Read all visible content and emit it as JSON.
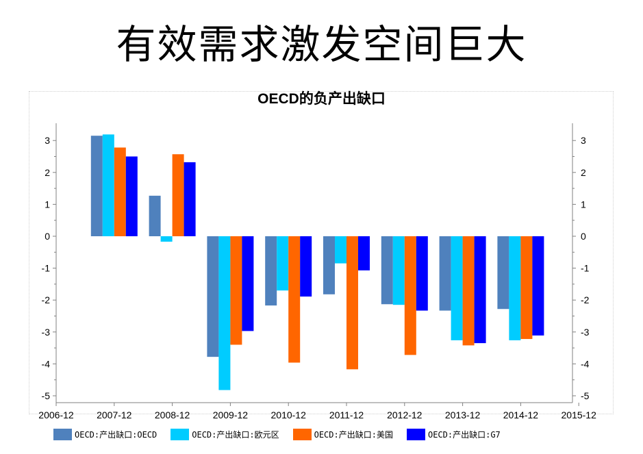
{
  "page": {
    "title": "有效需求激发空间巨大"
  },
  "chart_data": {
    "type": "bar",
    "title": "OECD的负产出缺口",
    "xlabel": "",
    "ylabel": "",
    "x_ticks": [
      "2006-12",
      "2007-12",
      "2008-12",
      "2009-12",
      "2010-12",
      "2011-12",
      "2012-12",
      "2013-12",
      "2014-12",
      "2015-12"
    ],
    "categories": [
      "2007-12",
      "2008-12",
      "2009-12",
      "2010-12",
      "2011-12",
      "2012-12",
      "2013-12",
      "2014-12"
    ],
    "ylim": [
      -5.3,
      3.5
    ],
    "y_ticks": [
      3,
      2,
      1,
      0,
      -1,
      -2,
      -3,
      -4,
      -5
    ],
    "grid": false,
    "legend_position": "bottom",
    "series": [
      {
        "name": "OECD:产出缺口:OECD",
        "color": "#4f81bd",
        "values": [
          3.15,
          1.27,
          -3.78,
          -2.17,
          -1.82,
          -2.13,
          -2.33,
          -2.28
        ]
      },
      {
        "name": "OECD:产出缺口:欧元区",
        "color": "#00ccff",
        "values": [
          3.19,
          -0.17,
          -4.82,
          -1.7,
          -0.85,
          -2.15,
          -3.26,
          -3.26
        ]
      },
      {
        "name": "OECD:产出缺口:美国",
        "color": "#ff6600",
        "values": [
          2.78,
          2.57,
          -3.4,
          -3.96,
          -4.17,
          -3.72,
          -3.42,
          -3.22
        ]
      },
      {
        "name": "OECD:产出缺口:G7",
        "color": "#0000ff",
        "values": [
          2.5,
          2.32,
          -2.97,
          -1.89,
          -1.07,
          -2.33,
          -3.35,
          -3.11
        ]
      }
    ]
  }
}
